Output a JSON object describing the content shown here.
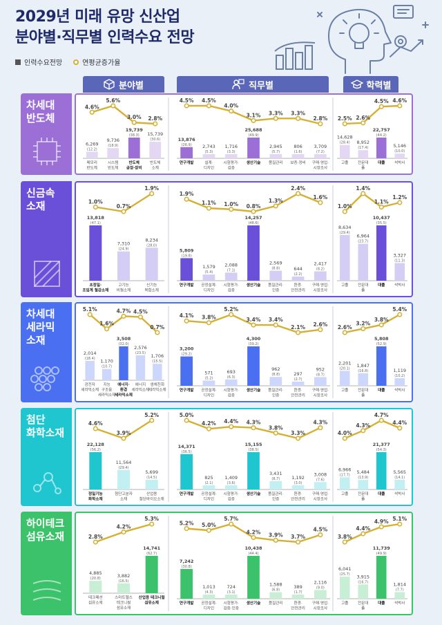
{
  "title": {
    "line1": "2029년 미래 유망 신산업",
    "line2": "분야별·직무별 인력수요 전망"
  },
  "legend": {
    "bar_label": "인력수요전망",
    "line_label": "연평균증가율"
  },
  "headers": {
    "field": "분야별",
    "job": "직무별",
    "edu": "학력별"
  },
  "colors": {
    "header": "#5a67b8",
    "line": "#d6b032",
    "semi": "#9b6fd6",
    "metal": "#6a4fd8",
    "ceramic": "#4a6ff0",
    "chem": "#20c6cf",
    "textile": "#3cc26a"
  },
  "chart_data": [
    {
      "type": "bar+line",
      "title": "차세대 반도체",
      "title_lines": [
        "차세대",
        "반도체"
      ],
      "color_key": "semi",
      "field": {
        "categories": [
          [
            "메모리",
            "반도체"
          ],
          [
            "시스템",
            "반도체"
          ],
          [
            "반도체",
            "공정·장비"
          ],
          [
            "반도체",
            "소재"
          ]
        ],
        "values": [
          6269,
          9736,
          19739,
          15739
        ],
        "value_labels": [
          "6,269",
          "9,736",
          "19,739",
          "15,739"
        ],
        "shares": [
          "12.2",
          "18.9",
          "38.3",
          "30.6"
        ],
        "rates": [
          4.6,
          5.6,
          3.0,
          2.8
        ],
        "highlight": 2
      },
      "job": {
        "categories": [
          [
            "연구개발"
          ],
          [
            "설계·",
            "디자인"
          ],
          [
            "시험평가·",
            "검증"
          ],
          [
            "생산기술"
          ],
          [
            "품질관리"
          ],
          [
            "보증·정비"
          ],
          [
            "구매·영업·",
            "시장조사"
          ]
        ],
        "values": [
          13876,
          2743,
          1716,
          25688,
          2945,
          806,
          3709
        ],
        "value_labels": [
          "13,876",
          "2,743",
          "1,716",
          "25,688",
          "2,945",
          "806",
          "3,709"
        ],
        "shares": [
          "26.9",
          "5.3",
          "3.3",
          "49.9",
          "5.7",
          "1.6",
          "7.2"
        ],
        "rates": [
          4.5,
          4.5,
          4.0,
          3.1,
          3.3,
          3.3,
          2.8
        ],
        "highlight": [
          0,
          3
        ]
      },
      "edu": {
        "categories": [
          [
            "고졸"
          ],
          [
            "전문대",
            "졸"
          ],
          [
            "대졸"
          ],
          [
            "석박사"
          ]
        ],
        "values": [
          14628,
          8952,
          22757,
          5146
        ],
        "value_labels": [
          "14,628",
          "8,952",
          "22,757",
          "5,146"
        ],
        "shares": [
          "28.4",
          "17.4",
          "44.2",
          "10.0"
        ],
        "rates": [
          2.5,
          2.6,
          4.5,
          4.6
        ],
        "highlight": 2
      }
    },
    {
      "type": "bar+line",
      "title": "신금속 소재",
      "title_lines": [
        "신금속",
        "소재"
      ],
      "color_key": "metal",
      "field": {
        "categories": [
          [
            "초정밀·",
            "초임계 철강소재"
          ],
          [
            "고기능",
            "비철소재"
          ],
          [
            "신기능",
            "복합소재"
          ]
        ],
        "values": [
          13818,
          7310,
          8234
        ],
        "value_labels": [
          "13,818",
          "7,310",
          "8,234"
        ],
        "shares": [
          "47.1",
          "24.9",
          "28.0"
        ],
        "rates": [
          1.0,
          0.7,
          1.9
        ],
        "highlight": 0
      },
      "job": {
        "categories": [
          [
            "연구개발"
          ],
          [
            "공정설계·",
            "디자인"
          ],
          [
            "시험평가·",
            "검증"
          ],
          [
            "생산기술"
          ],
          [
            "품질관리·",
            "인증"
          ],
          [
            "환경·",
            "안전관리"
          ],
          [
            "구매·영업·",
            "시장조사"
          ]
        ],
        "values": [
          5809,
          1579,
          2088,
          14257,
          2569,
          644,
          2417
        ],
        "value_labels": [
          "5,809",
          "1,579",
          "2,088",
          "14,257",
          "2,569",
          "644",
          "2,417"
        ],
        "shares": [
          "19.8",
          "5.4",
          "7.1",
          "48.6",
          "8.8",
          "2.2",
          "8.2"
        ],
        "rates": [
          1.9,
          1.1,
          1.0,
          0.8,
          1.3,
          2.4,
          1.6
        ],
        "highlight": [
          0,
          3
        ]
      },
      "edu": {
        "categories": [
          [
            "고졸"
          ],
          [
            "전문대",
            "졸"
          ],
          [
            "대졸"
          ],
          [
            "석박사"
          ]
        ],
        "values": [
          8634,
          6964,
          10437,
          3327
        ],
        "value_labels": [
          "8,634",
          "6,964",
          "10,437",
          "3,327"
        ],
        "shares": [
          "29.4",
          "23.7",
          "35.5",
          "11.3"
        ],
        "rates": [
          1.0,
          1.4,
          1.1,
          1.2
        ],
        "highlight": 2
      }
    },
    {
      "type": "bar+line",
      "title": "차세대 세라믹 소재",
      "title_lines": [
        "차세대",
        "세라믹",
        "소재"
      ],
      "color_key": "ceramic",
      "field": {
        "categories": [
          [
            "광전자",
            "세라믹소재"
          ],
          [
            "지능",
            "구조용",
            "세라믹소재"
          ],
          [
            "에너지·",
            "환경",
            "세라믹소재"
          ],
          [
            "에너지",
            "세라믹소재"
          ],
          [
            "생체친화",
            "세라믹소재"
          ]
        ],
        "values": [
          2014,
          1170,
          3508,
          2576,
          1706
        ],
        "value_labels": [
          "2,014",
          "1,170",
          "3,508",
          "2,576",
          "1,706"
        ],
        "shares": [
          "18.4",
          "10.7",
          "32.0",
          "23.5",
          "15.5"
        ],
        "rates": [
          5.1,
          1.6,
          4.7,
          4.5,
          0.7
        ],
        "highlight": 2
      },
      "job": {
        "categories": [
          [
            "연구개발"
          ],
          [
            "공정설계·",
            "디자인"
          ],
          [
            "시험평가·",
            "검증"
          ],
          [
            "생산기술"
          ],
          [
            "품질관리·",
            "인증"
          ],
          [
            "환경·",
            "안전관리"
          ],
          [
            "구매·영업·",
            "시장조사"
          ]
        ],
        "values": [
          3200,
          571,
          693,
          4300,
          962,
          297,
          952
        ],
        "value_labels": [
          "3,200",
          "571",
          "693",
          "4,300",
          "962",
          "297",
          "952"
        ],
        "shares": [
          "29.2",
          "5.2",
          "6.3",
          "39.2",
          "8.8",
          "2.7",
          "8.7"
        ],
        "rates": [
          4.1,
          3.8,
          5.2,
          3.4,
          3.4,
          2.1,
          2.6
        ],
        "highlight": [
          0,
          3
        ]
      },
      "edu": {
        "categories": [
          [
            "고졸"
          ],
          [
            "전문대",
            "졸"
          ],
          [
            "대졸"
          ],
          [
            "석박사"
          ]
        ],
        "values": [
          2201,
          1847,
          5808,
          1119
        ],
        "value_labels": [
          "2,201",
          "1,847",
          "5,808",
          "1,119"
        ],
        "shares": [
          "20.1",
          "16.8",
          "52.9",
          "10.2"
        ],
        "rates": [
          2.6,
          3.2,
          3.8,
          5.4
        ],
        "highlight": 2
      }
    },
    {
      "type": "bar+line",
      "title": "첨단 화학소재",
      "title_lines": [
        "첨단",
        "화학소재"
      ],
      "color_key": "chem",
      "field": {
        "categories": [
          [
            "정밀기능",
            "화학소재"
          ],
          [
            "첨단고분자",
            "소재"
          ],
          [
            "산업용",
            "첨단바이오소재"
          ]
        ],
        "values": [
          22128,
          11564,
          5699
        ],
        "value_labels": [
          "22,128",
          "11,564",
          "5,699"
        ],
        "shares": [
          "56.2",
          "29.4",
          "14.5"
        ],
        "rates": [
          4.6,
          3.9,
          5.2
        ],
        "highlight": 0
      },
      "job": {
        "categories": [
          [
            "연구개발"
          ],
          [
            "공정설계·",
            "디자인"
          ],
          [
            "시험평가·",
            "검증"
          ],
          [
            "생산기술"
          ],
          [
            "품질관리·",
            "인증"
          ],
          [
            "환경·",
            "안전관리"
          ],
          [
            "구매·영업·",
            "시장조사"
          ]
        ],
        "values": [
          14371,
          825,
          1409,
          15155,
          3431,
          1192,
          3008
        ],
        "value_labels": [
          "14,371",
          "825",
          "1,409",
          "15,155",
          "3,431",
          "1,192",
          "3,008"
        ],
        "shares": [
          "36.5",
          "2.1",
          "3.6",
          "38.5",
          "8.7",
          "3.0",
          "7.6"
        ],
        "rates": [
          5.0,
          4.2,
          4.4,
          4.3,
          3.8,
          3.3,
          4.3
        ],
        "highlight": [
          0,
          3
        ]
      },
      "edu": {
        "categories": [
          [
            "고졸"
          ],
          [
            "전문대",
            "졸"
          ],
          [
            "대졸"
          ],
          [
            "석박사"
          ]
        ],
        "values": [
          6966,
          5484,
          21377,
          5565
        ],
        "value_labels": [
          "6,966",
          "5,484",
          "21,377",
          "5,565"
        ],
        "shares": [
          "17.7",
          "13.9",
          "54.3",
          "14.1"
        ],
        "rates": [
          4.0,
          4.3,
          4.7,
          4.4
        ],
        "highlight": 2
      }
    },
    {
      "type": "bar+line",
      "title": "하이테크 섬유소재",
      "title_lines": [
        "하이테크",
        "섬유소재"
      ],
      "color_key": "textile",
      "field": {
        "categories": [
          [
            "테크패션",
            "섬유소재"
          ],
          [
            "스마트헬스",
            "테크니컬",
            "섬유소재"
          ],
          [
            "산업용 테크니컬",
            "섬유소재"
          ]
        ],
        "values": [
          4885,
          3882,
          14741
        ],
        "value_labels": [
          "4,885",
          "3,882",
          "14,741"
        ],
        "shares": [
          "20.8",
          "16.5",
          "62.7"
        ],
        "rates": [
          2.8,
          4.2,
          5.3
        ],
        "highlight": 2
      },
      "job": {
        "categories": [
          [
            "연구개발"
          ],
          [
            "공정설계·",
            "디자인"
          ],
          [
            "시험평가·",
            "검증·인증"
          ],
          [
            "생산기술"
          ],
          [
            "품질관리"
          ],
          [
            "환경·",
            "안전관리"
          ],
          [
            "구매·영업·",
            "시장조사"
          ]
        ],
        "values": [
          7242,
          1013,
          724,
          10438,
          1588,
          389,
          2116
        ],
        "value_labels": [
          "7,242",
          "1,013",
          "724",
          "10,438",
          "1,588",
          "389",
          "2,116"
        ],
        "shares": [
          "30.8",
          "4.3",
          "3.1",
          "44.4",
          "6.8",
          "1.7",
          "9.0"
        ],
        "rates": [
          5.2,
          5.0,
          5.7,
          4.2,
          3.9,
          3.7,
          4.5
        ],
        "highlight": [
          0,
          3
        ]
      },
      "edu": {
        "categories": [
          [
            "고졸"
          ],
          [
            "전문대",
            "졸"
          ],
          [
            "대졸"
          ],
          [
            "석박사"
          ]
        ],
        "values": [
          6041,
          3915,
          11739,
          1814
        ],
        "value_labels": [
          "6,041",
          "3,915",
          "11,739",
          "1,814"
        ],
        "shares": [
          "25.7",
          "16.7",
          "49.9",
          "7.7"
        ],
        "rates": [
          3.8,
          4.4,
          4.9,
          5.1
        ],
        "highlight": 2
      }
    }
  ]
}
